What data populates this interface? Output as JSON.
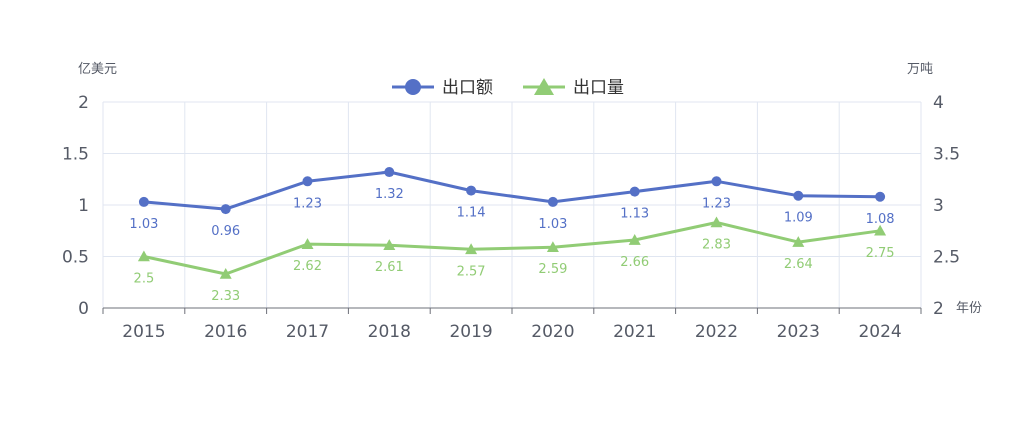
{
  "chart_data": {
    "type": "line",
    "title": "",
    "categories": [
      "2015",
      "2016",
      "2017",
      "2018",
      "2019",
      "2020",
      "2021",
      "2022",
      "2023",
      "2024"
    ],
    "xlabel": "年份",
    "y_left": {
      "unit": "亿美元",
      "range": [
        0,
        2
      ],
      "ticks": [
        "0",
        "0.5",
        "1",
        "1.5",
        "2"
      ]
    },
    "y_right": {
      "unit": "万吨",
      "range": [
        2,
        4
      ],
      "ticks": [
        "2",
        "2.5",
        "3",
        "3.5",
        "4"
      ]
    },
    "grid": true,
    "legend_position": "top-center",
    "series": [
      {
        "name": "出口额",
        "axis": "left",
        "marker": "circle",
        "color": "#5470c6",
        "values": [
          1.03,
          0.96,
          1.23,
          1.32,
          1.14,
          1.03,
          1.13,
          1.23,
          1.09,
          1.08
        ],
        "labels": [
          "1.03",
          "0.96",
          "1.23",
          "1.32",
          "1.14",
          "1.03",
          "1.13",
          "1.23",
          "1.09",
          "1.08"
        ]
      },
      {
        "name": "出口量",
        "axis": "right",
        "marker": "triangle",
        "color": "#91cc75",
        "values": [
          2.5,
          2.33,
          2.62,
          2.61,
          2.57,
          2.59,
          2.66,
          2.83,
          2.64,
          2.75
        ],
        "labels": [
          "2.5",
          "2.33",
          "2.62",
          "2.61",
          "2.57",
          "2.59",
          "2.66",
          "2.83",
          "2.64",
          "2.75"
        ]
      }
    ]
  }
}
